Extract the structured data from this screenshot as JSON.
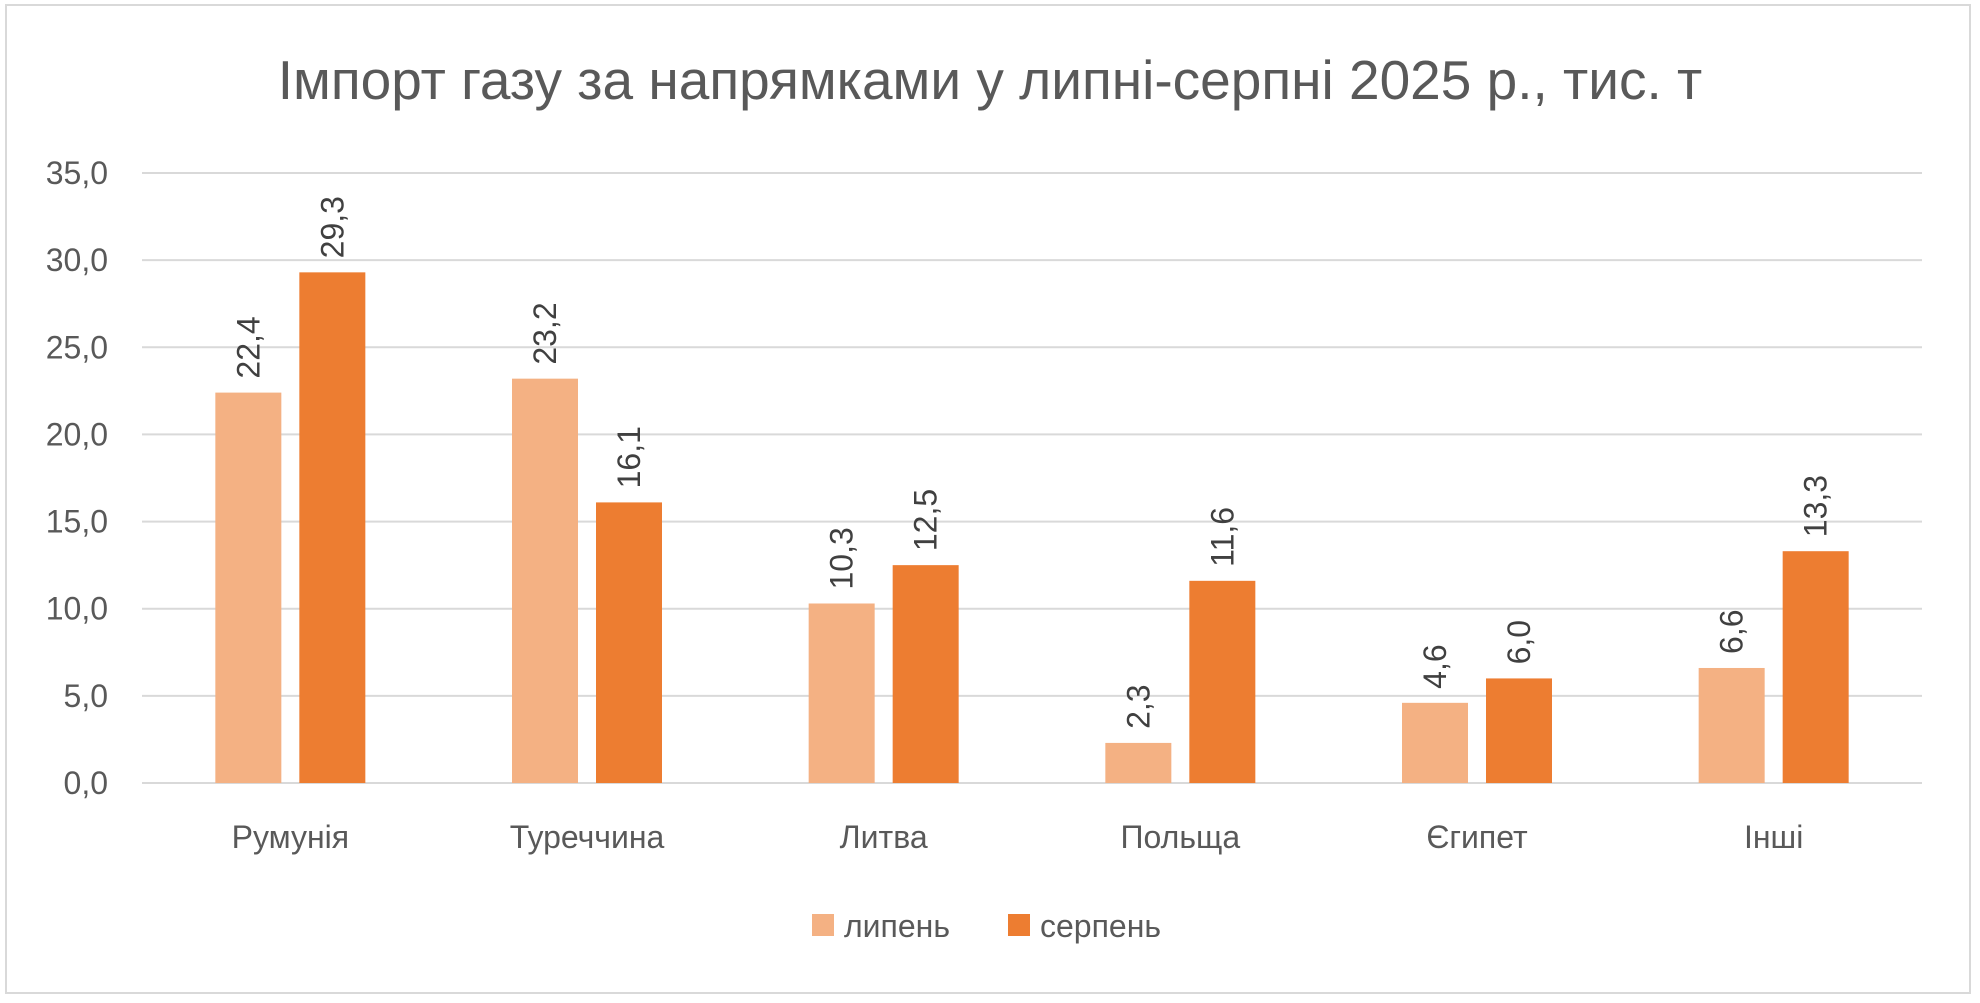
{
  "chart_data": {
    "type": "bar",
    "title": "Імпорт газу за напрямками у липні-серпні 2025 р., тис. т",
    "categories": [
      "Румунія",
      "Туреччина",
      "Литва",
      "Польща",
      "Єгипет",
      "Інші"
    ],
    "series": [
      {
        "name": "липень",
        "color": "#f4b183",
        "values": [
          22.4,
          23.2,
          10.3,
          2.3,
          4.6,
          6.6
        ],
        "labels": [
          "22,4",
          "23,2",
          "10,3",
          "2,3",
          "4,6",
          "6,6"
        ]
      },
      {
        "name": "серпень",
        "color": "#ed7d31",
        "values": [
          29.3,
          16.1,
          12.5,
          11.6,
          6.0,
          13.3
        ],
        "labels": [
          "29,3",
          "16,1",
          "12,5",
          "11,6",
          "6,0",
          "13,3"
        ]
      }
    ],
    "ylim": [
      0,
      35
    ],
    "yticks": [
      "0,0",
      "5,0",
      "10,0",
      "15,0",
      "20,0",
      "25,0",
      "30,0",
      "35,0"
    ],
    "ytick_values": [
      0,
      5,
      10,
      15,
      20,
      25,
      30,
      35
    ],
    "grid": true,
    "legend_position": "bottom",
    "xlabel": "",
    "ylabel": ""
  }
}
